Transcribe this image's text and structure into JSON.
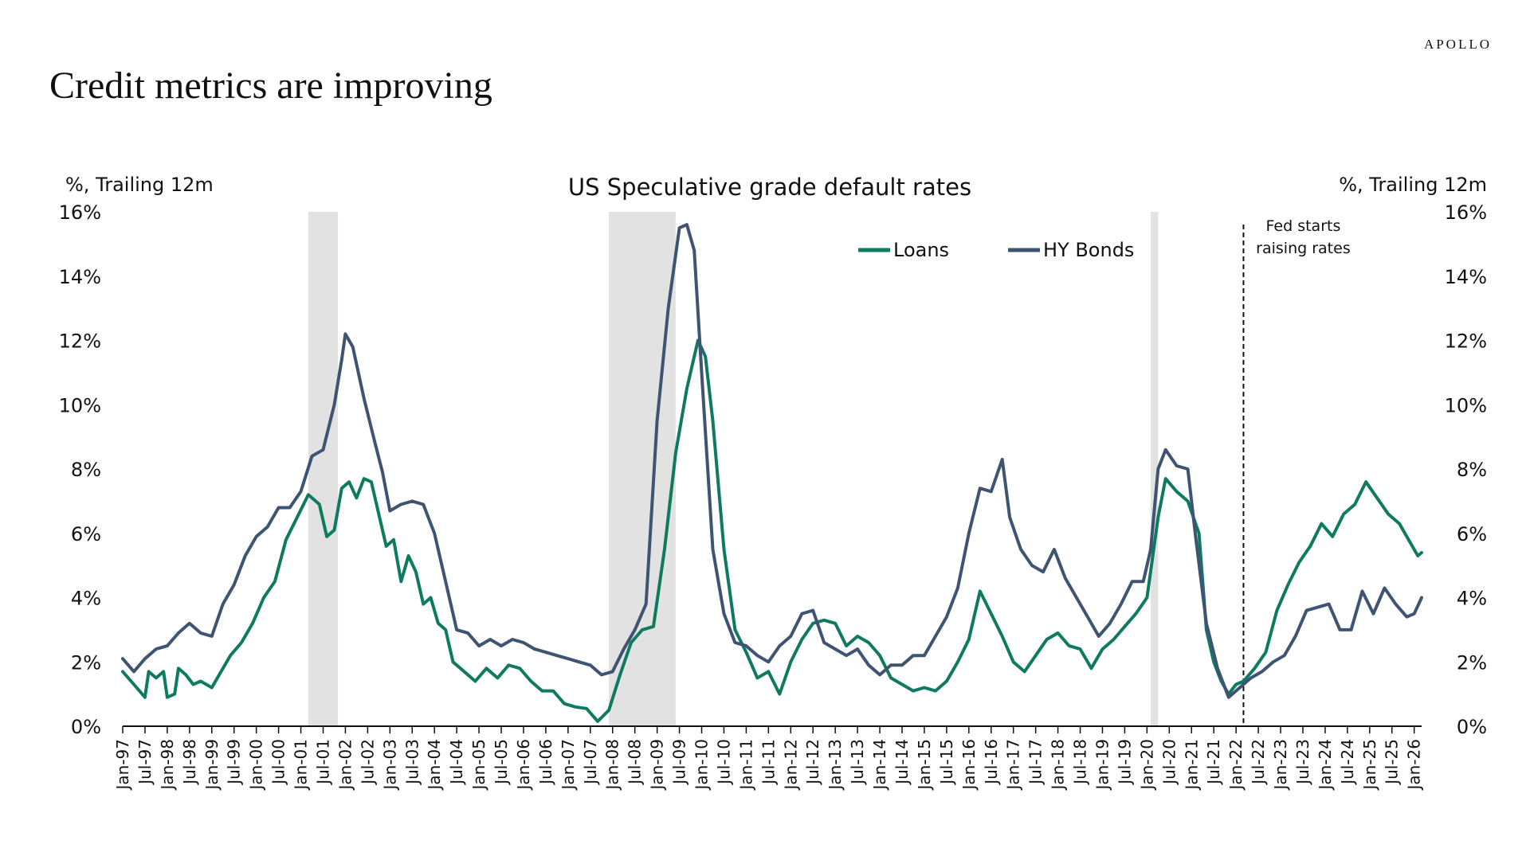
{
  "header": {
    "brand": "APOLLO",
    "title": "Credit metrics are improving"
  },
  "colors": {
    "loans": "#0e7a5f",
    "bonds": "#3f5472",
    "shade": "#e2e2e2",
    "text": "#111111"
  },
  "chart_data": {
    "type": "line",
    "title": "US Speculative grade default rates",
    "ylabel_left": "%, Trailing 12m",
    "ylabel_right": "%, Trailing 12m",
    "ylim": [
      0,
      16
    ],
    "yticks": [
      0,
      2,
      4,
      6,
      8,
      10,
      12,
      14,
      16
    ],
    "ytick_labels": [
      "0%",
      "2%",
      "4%",
      "6%",
      "8%",
      "10%",
      "12%",
      "14%",
      "16%"
    ],
    "x_start": "1997-01",
    "x_end": "2026-03",
    "x_tick_labels": [
      "Jan-97",
      "Jul-97",
      "Jan-98",
      "Jul-98",
      "Jan-99",
      "Jul-99",
      "Jan-00",
      "Jul-00",
      "Jan-01",
      "Jul-01",
      "Jan-02",
      "Jul-02",
      "Jan-03",
      "Jul-03",
      "Jan-04",
      "Jul-04",
      "Jan-05",
      "Jul-05",
      "Jan-06",
      "Jul-06",
      "Jan-07",
      "Jul-07",
      "Jan-08",
      "Jul-08",
      "Jan-09",
      "Jul-09",
      "Jan-10",
      "Jul-10",
      "Jan-11",
      "Jul-11",
      "Jan-12",
      "Jul-12",
      "Jan-13",
      "Jul-13",
      "Jan-14",
      "Jul-14",
      "Jan-15",
      "Jul-15",
      "Jan-16",
      "Jul-16",
      "Jan-17",
      "Jul-17",
      "Jan-18",
      "Jul-18",
      "Jan-19",
      "Jul-19",
      "Jan-20",
      "Jul-20",
      "Jan-21",
      "Jul-21",
      "Jan-22",
      "Jul-22",
      "Jan-23",
      "Jul-23",
      "Jan-24",
      "Jul-24",
      "Jan-25",
      "Jul-25",
      "Jan-26"
    ],
    "legend": "top-center",
    "grid": false,
    "recessions": [
      [
        "2001-03",
        "2001-11"
      ],
      [
        "2007-12",
        "2009-06"
      ],
      [
        "2020-02",
        "2020-04"
      ]
    ],
    "annotation": {
      "date": "2022-03",
      "text": [
        "Fed starts",
        "raising rates"
      ]
    },
    "series": [
      {
        "name": "Loans",
        "points": [
          [
            "1997-01",
            1.7
          ],
          [
            "1997-04",
            1.3
          ],
          [
            "1997-07",
            0.9
          ],
          [
            "1997-08",
            1.7
          ],
          [
            "1997-10",
            1.5
          ],
          [
            "1997-12",
            1.7
          ],
          [
            "1998-01",
            0.9
          ],
          [
            "1998-03",
            1.0
          ],
          [
            "1998-04",
            1.8
          ],
          [
            "1998-06",
            1.6
          ],
          [
            "1998-08",
            1.3
          ],
          [
            "1998-10",
            1.4
          ],
          [
            "1999-01",
            1.2
          ],
          [
            "1999-03",
            1.6
          ],
          [
            "1999-06",
            2.2
          ],
          [
            "1999-09",
            2.6
          ],
          [
            "1999-12",
            3.2
          ],
          [
            "2000-03",
            4.0
          ],
          [
            "2000-06",
            4.5
          ],
          [
            "2000-09",
            5.8
          ],
          [
            "2000-12",
            6.5
          ],
          [
            "2001-03",
            7.2
          ],
          [
            "2001-06",
            6.9
          ],
          [
            "2001-08",
            5.9
          ],
          [
            "2001-10",
            6.1
          ],
          [
            "2001-12",
            7.4
          ],
          [
            "2002-02",
            7.6
          ],
          [
            "2002-04",
            7.1
          ],
          [
            "2002-06",
            7.7
          ],
          [
            "2002-08",
            7.6
          ],
          [
            "2002-10",
            6.6
          ],
          [
            "2002-12",
            5.6
          ],
          [
            "2003-02",
            5.8
          ],
          [
            "2003-04",
            4.5
          ],
          [
            "2003-06",
            5.3
          ],
          [
            "2003-08",
            4.8
          ],
          [
            "2003-10",
            3.8
          ],
          [
            "2003-12",
            4.0
          ],
          [
            "2004-02",
            3.2
          ],
          [
            "2004-04",
            3.0
          ],
          [
            "2004-06",
            2.0
          ],
          [
            "2004-09",
            1.7
          ],
          [
            "2004-12",
            1.4
          ],
          [
            "2005-03",
            1.8
          ],
          [
            "2005-06",
            1.5
          ],
          [
            "2005-09",
            1.9
          ],
          [
            "2005-12",
            1.8
          ],
          [
            "2006-03",
            1.4
          ],
          [
            "2006-06",
            1.1
          ],
          [
            "2006-09",
            1.1
          ],
          [
            "2006-12",
            0.7
          ],
          [
            "2007-03",
            0.6
          ],
          [
            "2007-06",
            0.55
          ],
          [
            "2007-09",
            0.15
          ],
          [
            "2007-12",
            0.5
          ],
          [
            "2008-03",
            1.6
          ],
          [
            "2008-06",
            2.6
          ],
          [
            "2008-09",
            3.0
          ],
          [
            "2008-12",
            3.1
          ],
          [
            "2009-03",
            5.5
          ],
          [
            "2009-06",
            8.5
          ],
          [
            "2009-09",
            10.5
          ],
          [
            "2009-12",
            12.0
          ],
          [
            "2010-02",
            11.5
          ],
          [
            "2010-04",
            9.5
          ],
          [
            "2010-07",
            5.5
          ],
          [
            "2010-10",
            3.0
          ],
          [
            "2011-01",
            2.3
          ],
          [
            "2011-04",
            1.5
          ],
          [
            "2011-07",
            1.7
          ],
          [
            "2011-10",
            1.0
          ],
          [
            "2012-01",
            2.0
          ],
          [
            "2012-04",
            2.7
          ],
          [
            "2012-07",
            3.2
          ],
          [
            "2012-10",
            3.3
          ],
          [
            "2013-01",
            3.2
          ],
          [
            "2013-04",
            2.5
          ],
          [
            "2013-07",
            2.8
          ],
          [
            "2013-10",
            2.6
          ],
          [
            "2014-01",
            2.2
          ],
          [
            "2014-04",
            1.5
          ],
          [
            "2014-07",
            1.3
          ],
          [
            "2014-10",
            1.1
          ],
          [
            "2015-01",
            1.2
          ],
          [
            "2015-04",
            1.1
          ],
          [
            "2015-07",
            1.4
          ],
          [
            "2015-10",
            2.0
          ],
          [
            "2016-01",
            2.7
          ],
          [
            "2016-04",
            4.2
          ],
          [
            "2016-07",
            3.5
          ],
          [
            "2016-10",
            2.8
          ],
          [
            "2017-01",
            2.0
          ],
          [
            "2017-04",
            1.7
          ],
          [
            "2017-07",
            2.2
          ],
          [
            "2017-10",
            2.7
          ],
          [
            "2018-01",
            2.9
          ],
          [
            "2018-04",
            2.5
          ],
          [
            "2018-07",
            2.4
          ],
          [
            "2018-10",
            1.8
          ],
          [
            "2019-01",
            2.4
          ],
          [
            "2019-04",
            2.7
          ],
          [
            "2019-07",
            3.1
          ],
          [
            "2019-10",
            3.5
          ],
          [
            "2020-01",
            4.0
          ],
          [
            "2020-04",
            6.5
          ],
          [
            "2020-06",
            7.7
          ],
          [
            "2020-09",
            7.3
          ],
          [
            "2020-12",
            7.0
          ],
          [
            "2021-03",
            6.0
          ],
          [
            "2021-05",
            3.0
          ],
          [
            "2021-07",
            2.0
          ],
          [
            "2021-09",
            1.4
          ],
          [
            "2021-11",
            1.0
          ],
          [
            "2022-01",
            1.3
          ],
          [
            "2022-03",
            1.4
          ],
          [
            "2022-06",
            1.8
          ],
          [
            "2022-09",
            2.3
          ],
          [
            "2022-12",
            3.6
          ],
          [
            "2023-03",
            4.4
          ],
          [
            "2023-06",
            5.1
          ],
          [
            "2023-09",
            5.6
          ],
          [
            "2023-12",
            6.3
          ],
          [
            "2024-03",
            5.9
          ],
          [
            "2024-06",
            6.6
          ],
          [
            "2024-09",
            6.9
          ],
          [
            "2024-12",
            7.6
          ],
          [
            "2025-03",
            7.1
          ],
          [
            "2025-06",
            6.6
          ],
          [
            "2025-09",
            6.3
          ],
          [
            "2025-12",
            5.7
          ],
          [
            "2026-02",
            5.3
          ],
          [
            "2026-03",
            5.4
          ]
        ]
      },
      {
        "name": "HY Bonds",
        "points": [
          [
            "1997-01",
            2.1
          ],
          [
            "1997-04",
            1.7
          ],
          [
            "1997-07",
            2.1
          ],
          [
            "1997-10",
            2.4
          ],
          [
            "1998-01",
            2.5
          ],
          [
            "1998-04",
            2.9
          ],
          [
            "1998-07",
            3.2
          ],
          [
            "1998-10",
            2.9
          ],
          [
            "1999-01",
            2.8
          ],
          [
            "1999-04",
            3.8
          ],
          [
            "1999-07",
            4.4
          ],
          [
            "1999-10",
            5.3
          ],
          [
            "2000-01",
            5.9
          ],
          [
            "2000-04",
            6.2
          ],
          [
            "2000-07",
            6.8
          ],
          [
            "2000-10",
            6.8
          ],
          [
            "2001-01",
            7.3
          ],
          [
            "2001-04",
            8.4
          ],
          [
            "2001-07",
            8.6
          ],
          [
            "2001-10",
            10.0
          ],
          [
            "2001-12",
            11.4
          ],
          [
            "2002-01",
            12.2
          ],
          [
            "2002-03",
            11.8
          ],
          [
            "2002-06",
            10.2
          ],
          [
            "2002-09",
            8.8
          ],
          [
            "2002-11",
            7.9
          ],
          [
            "2003-01",
            6.7
          ],
          [
            "2003-04",
            6.9
          ],
          [
            "2003-07",
            7.0
          ],
          [
            "2003-10",
            6.9
          ],
          [
            "2004-01",
            6.0
          ],
          [
            "2004-04",
            4.5
          ],
          [
            "2004-07",
            3.0
          ],
          [
            "2004-10",
            2.9
          ],
          [
            "2005-01",
            2.5
          ],
          [
            "2005-04",
            2.7
          ],
          [
            "2005-07",
            2.5
          ],
          [
            "2005-10",
            2.7
          ],
          [
            "2006-01",
            2.6
          ],
          [
            "2006-04",
            2.4
          ],
          [
            "2006-07",
            2.3
          ],
          [
            "2006-10",
            2.2
          ],
          [
            "2007-01",
            2.1
          ],
          [
            "2007-04",
            2.0
          ],
          [
            "2007-07",
            1.9
          ],
          [
            "2007-10",
            1.6
          ],
          [
            "2008-01",
            1.7
          ],
          [
            "2008-04",
            2.4
          ],
          [
            "2008-07",
            3.0
          ],
          [
            "2008-10",
            3.8
          ],
          [
            "2009-01",
            9.5
          ],
          [
            "2009-04",
            13.0
          ],
          [
            "2009-07",
            15.5
          ],
          [
            "2009-09",
            15.6
          ],
          [
            "2009-11",
            14.8
          ],
          [
            "2010-01",
            11.0
          ],
          [
            "2010-04",
            5.5
          ],
          [
            "2010-07",
            3.5
          ],
          [
            "2010-10",
            2.6
          ],
          [
            "2011-01",
            2.5
          ],
          [
            "2011-04",
            2.2
          ],
          [
            "2011-07",
            2.0
          ],
          [
            "2011-10",
            2.5
          ],
          [
            "2012-01",
            2.8
          ],
          [
            "2012-04",
            3.5
          ],
          [
            "2012-07",
            3.6
          ],
          [
            "2012-10",
            2.6
          ],
          [
            "2013-01",
            2.4
          ],
          [
            "2013-04",
            2.2
          ],
          [
            "2013-07",
            2.4
          ],
          [
            "2013-10",
            1.9
          ],
          [
            "2014-01",
            1.6
          ],
          [
            "2014-04",
            1.9
          ],
          [
            "2014-07",
            1.9
          ],
          [
            "2014-10",
            2.2
          ],
          [
            "2015-01",
            2.2
          ],
          [
            "2015-04",
            2.8
          ],
          [
            "2015-07",
            3.4
          ],
          [
            "2015-10",
            4.3
          ],
          [
            "2016-01",
            6.0
          ],
          [
            "2016-04",
            7.4
          ],
          [
            "2016-07",
            7.3
          ],
          [
            "2016-10",
            8.3
          ],
          [
            "2016-12",
            6.5
          ],
          [
            "2017-03",
            5.5
          ],
          [
            "2017-06",
            5.0
          ],
          [
            "2017-09",
            4.8
          ],
          [
            "2017-12",
            5.5
          ],
          [
            "2018-03",
            4.6
          ],
          [
            "2018-06",
            4.0
          ],
          [
            "2018-09",
            3.4
          ],
          [
            "2018-12",
            2.8
          ],
          [
            "2019-03",
            3.2
          ],
          [
            "2019-06",
            3.8
          ],
          [
            "2019-09",
            4.5
          ],
          [
            "2019-12",
            4.5
          ],
          [
            "2020-02",
            5.5
          ],
          [
            "2020-04",
            8.0
          ],
          [
            "2020-06",
            8.6
          ],
          [
            "2020-09",
            8.1
          ],
          [
            "2020-12",
            8.0
          ],
          [
            "2021-02",
            6.0
          ],
          [
            "2021-05",
            3.2
          ],
          [
            "2021-08",
            1.8
          ],
          [
            "2021-11",
            0.9
          ],
          [
            "2022-02",
            1.2
          ],
          [
            "2022-05",
            1.5
          ],
          [
            "2022-08",
            1.7
          ],
          [
            "2022-11",
            2.0
          ],
          [
            "2023-02",
            2.2
          ],
          [
            "2023-05",
            2.8
          ],
          [
            "2023-08",
            3.6
          ],
          [
            "2023-11",
            3.7
          ],
          [
            "2024-02",
            3.8
          ],
          [
            "2024-05",
            3.0
          ],
          [
            "2024-08",
            3.0
          ],
          [
            "2024-11",
            4.2
          ],
          [
            "2025-02",
            3.5
          ],
          [
            "2025-05",
            4.3
          ],
          [
            "2025-08",
            3.8
          ],
          [
            "2025-11",
            3.4
          ],
          [
            "2026-01",
            3.5
          ],
          [
            "2026-03",
            4.0
          ]
        ]
      }
    ]
  }
}
